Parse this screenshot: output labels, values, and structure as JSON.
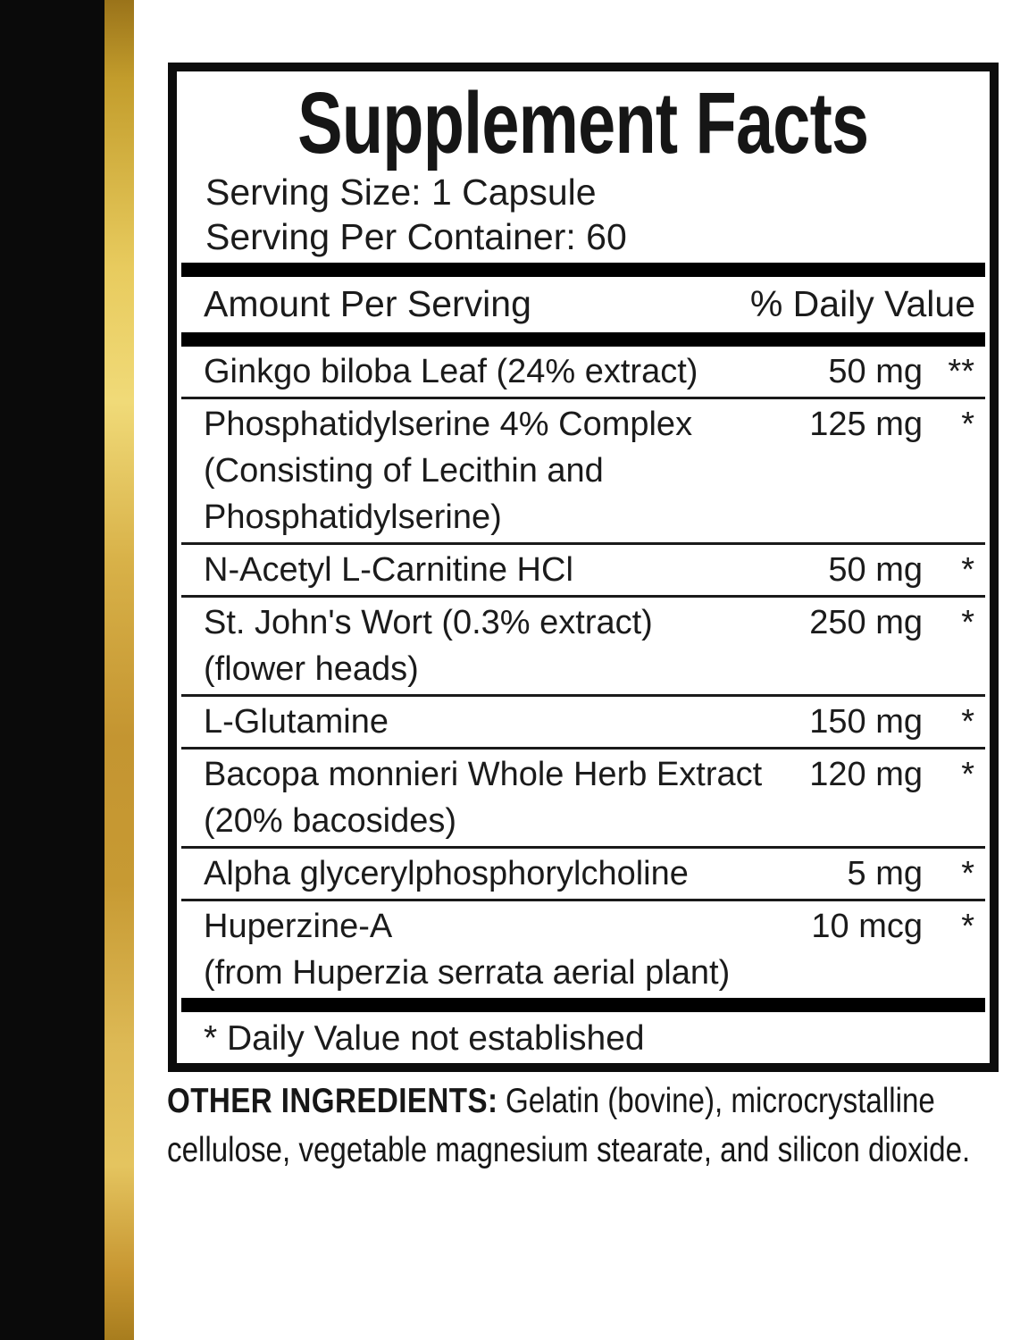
{
  "colors": {
    "side_bar_black": "#0a0a0a",
    "gold_light": "#f0da78",
    "gold_dark": "#9a731a",
    "text": "#1b1b1b",
    "rule_black": "#000000"
  },
  "panel": {
    "title": "Supplement Facts",
    "serving_size": "Serving Size: 1 Capsule",
    "servings_per_container": "Serving Per Container: 60",
    "columns": {
      "left": "Amount Per Serving",
      "right": "% Daily Value"
    },
    "rows": [
      {
        "name": "Ginkgo biloba Leaf (24% extract)",
        "amount": "50 mg",
        "dv": "**"
      },
      {
        "name": "Phosphatidylserine 4% Complex",
        "amount": "125 mg",
        "dv": "*",
        "continuation": [
          "(Consisting of Lecithin and",
          "Phosphatidylserine)"
        ]
      },
      {
        "name": "N-Acetyl L-Carnitine HCl",
        "amount": "50 mg",
        "dv": "*"
      },
      {
        "name": "St. John's Wort (0.3% extract)",
        "amount": "250 mg",
        "dv": "*",
        "continuation": [
          "(flower heads)"
        ]
      },
      {
        "name": "L-Glutamine",
        "amount": "150 mg",
        "dv": "*"
      },
      {
        "name": "Bacopa monnieri Whole Herb Extract",
        "amount": "120 mg",
        "dv": "*",
        "continuation": [
          "(20% bacosides)"
        ]
      },
      {
        "name": "Alpha glycerylphosphorylcholine",
        "amount": "5 mg",
        "dv": "*"
      },
      {
        "name": "Huperzine-A",
        "amount": "10 mcg",
        "dv": "*",
        "continuation": [
          "(from Huperzia serrata aerial plant)"
        ]
      }
    ],
    "footnote": "* Daily Value not established"
  },
  "other_ingredients": {
    "label": "OTHER INGREDIENTS:",
    "line1": "Gelatin (bovine), microcrystalline",
    "line2": "cellulose, vegetable magnesium stearate, and silicon dioxide."
  }
}
